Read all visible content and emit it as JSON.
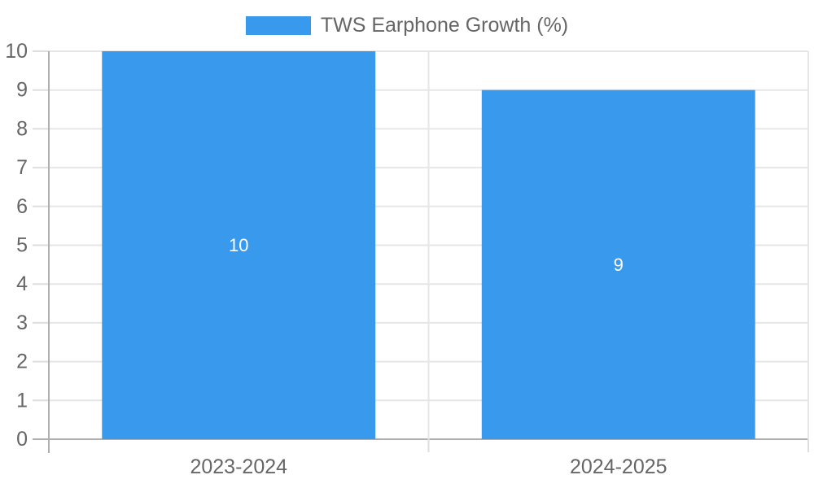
{
  "chart_data": {
    "type": "bar",
    "title": "TWS Earphone Growth (%)",
    "categories": [
      "2023-2024",
      "2024-2025"
    ],
    "series": [
      {
        "name": "TWS Earphone Growth (%)",
        "values": [
          10,
          9
        ]
      }
    ],
    "value_labels": [
      "10",
      "9"
    ],
    "value_label_position": "center",
    "xlabel": "",
    "ylabel": "",
    "ylim": [
      0,
      10
    ],
    "y_ticks": [
      0,
      1,
      2,
      3,
      4,
      5,
      6,
      7,
      8,
      9,
      10
    ],
    "grid": true,
    "legend_position": "top-center",
    "colors": {
      "bar": "#3999ED",
      "background": "#FFFFFF",
      "axis_text": "#666666",
      "legend_text": "#666666",
      "value_label_text": "#FFFFFF",
      "grid_line": "#E6E6E6",
      "axis_line": "#AFAFAF",
      "tick_mark": "#DEDEDE"
    }
  }
}
